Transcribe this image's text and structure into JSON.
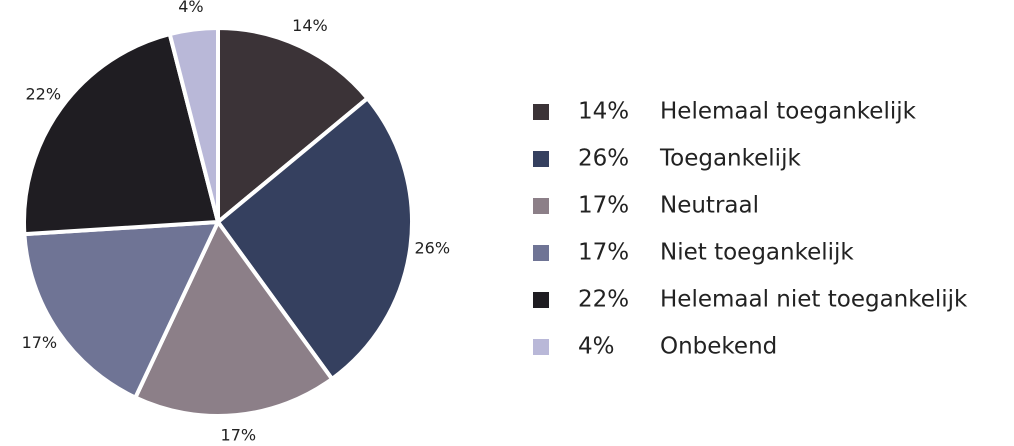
{
  "chart_data": {
    "type": "pie",
    "categories": [
      "Helemaal toegankelijk",
      "Toegankelijk",
      "Neutraal",
      "Niet toegankelijk",
      "Helemaal niet toegankelijk",
      "Onbekend"
    ],
    "values": [
      14,
      26,
      17,
      17,
      22,
      4
    ],
    "value_labels": [
      "14%",
      "26%",
      "17%",
      "17%",
      "22%",
      "4%"
    ],
    "colors": [
      "#3b3337",
      "#35405f",
      "#8c7f88",
      "#6f7495",
      "#1f1d22",
      "#b9b8d8"
    ],
    "legend": "right"
  }
}
